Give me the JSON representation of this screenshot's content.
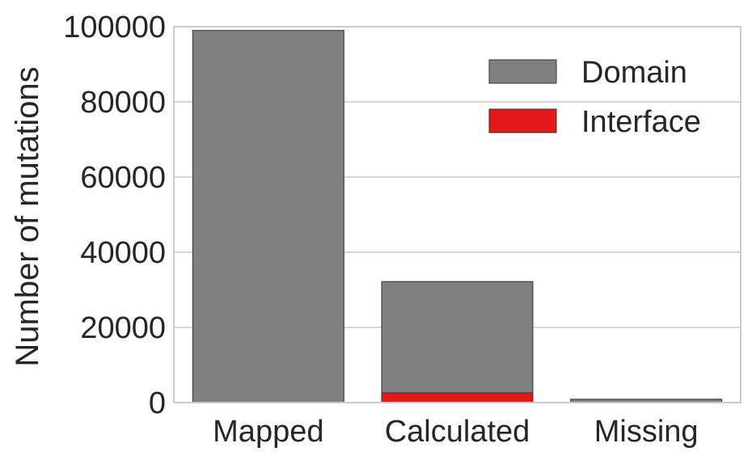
{
  "chart_data": {
    "type": "bar",
    "stacked": "overlay",
    "categories": [
      "Mapped",
      "Calculated",
      "Missing"
    ],
    "series": [
      {
        "name": "Domain",
        "color": "#808080",
        "values": [
          99000,
          32200,
          900
        ]
      },
      {
        "name": "Interface",
        "color": "#e31a1c",
        "values": [
          0,
          2600,
          0
        ]
      }
    ],
    "ylabel": "Number of mutations",
    "xlabel": "",
    "ylim": [
      0,
      100000
    ],
    "yticks": [
      0,
      20000,
      40000,
      60000,
      80000,
      100000
    ],
    "grid": true,
    "legend_position": "top-right"
  }
}
